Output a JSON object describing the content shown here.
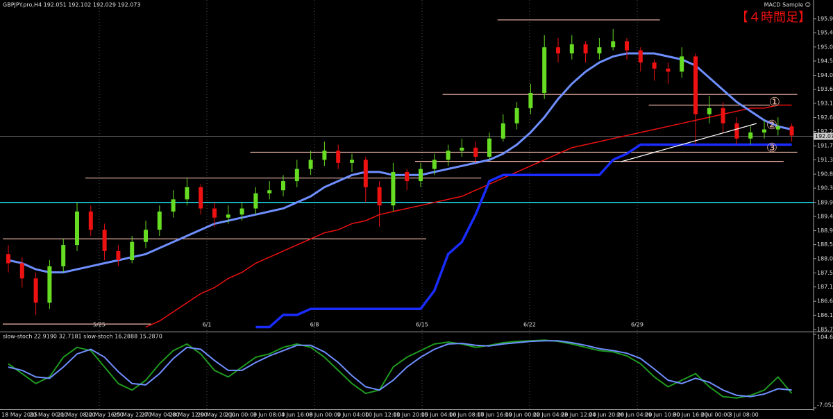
{
  "chart_data": {
    "type": "candlestick",
    "header": "GBPJPY.pro,H4  192.051 192.102 192.029 192.073",
    "indicator_name": "MACD Sample ☺",
    "timeframe_label": "【４時間足】",
    "markers": [
      "①",
      "②",
      "③"
    ],
    "open": [
      188.2,
      187.9,
      187.4,
      186.6,
      187.8,
      188.5,
      189.6,
      189.0,
      188.3,
      188.0,
      188.6,
      189.0,
      189.6,
      190.0,
      190.4,
      189.7,
      189.4,
      189.5,
      189.7,
      190.2,
      190.3,
      190.6,
      191.0,
      191.3,
      191.6,
      191.2,
      191.3,
      190.4,
      189.8,
      190.9,
      190.6,
      191.0,
      191.3,
      191.6,
      191.7,
      191.4,
      192.0,
      192.5,
      193.0,
      193.5,
      195.0,
      194.8,
      195.1,
      194.8,
      195.0,
      195.2,
      194.9,
      194.5,
      194.3,
      194.2,
      194.7,
      192.8,
      193.0,
      192.5,
      192.0,
      192.2,
      192.3,
      192.4
    ],
    "high": [
      188.5,
      188.1,
      187.6,
      188.0,
      188.7,
      189.9,
      189.8,
      189.2,
      188.5,
      188.8,
      189.3,
      189.8,
      190.3,
      190.7,
      190.5,
      189.9,
      189.8,
      189.9,
      190.4,
      190.6,
      190.8,
      191.3,
      191.6,
      191.9,
      191.8,
      191.5,
      191.4,
      190.6,
      191.2,
      191.0,
      191.2,
      191.5,
      191.8,
      192.0,
      191.9,
      192.2,
      192.8,
      193.2,
      193.8,
      195.4,
      195.3,
      195.4,
      195.2,
      195.3,
      195.6,
      195.3,
      195.0,
      194.6,
      194.5,
      195.0,
      194.8,
      193.4,
      193.2,
      192.7,
      192.4,
      192.6,
      192.7,
      192.5
    ],
    "low": [
      187.6,
      187.1,
      186.2,
      186.4,
      187.6,
      188.3,
      188.8,
      188.0,
      187.8,
      187.9,
      188.4,
      188.8,
      189.4,
      189.8,
      189.5,
      189.1,
      189.2,
      189.3,
      189.5,
      190.0,
      190.1,
      190.4,
      190.8,
      191.1,
      191.0,
      190.9,
      189.9,
      189.1,
      189.6,
      190.3,
      190.4,
      190.8,
      191.1,
      191.4,
      191.2,
      191.3,
      191.9,
      192.3,
      192.8,
      193.3,
      194.5,
      194.6,
      194.5,
      194.6,
      194.9,
      194.6,
      194.2,
      193.9,
      193.8,
      194.0,
      191.8,
      192.5,
      192.2,
      191.8,
      191.8,
      192.0,
      192.1,
      191.9
    ],
    "close": [
      187.9,
      187.4,
      186.6,
      187.8,
      188.5,
      189.6,
      189.0,
      188.3,
      188.0,
      188.6,
      189.0,
      189.6,
      190.0,
      190.4,
      189.7,
      189.4,
      189.5,
      189.7,
      190.2,
      190.3,
      190.6,
      191.0,
      191.3,
      191.6,
      191.2,
      191.3,
      190.4,
      189.8,
      190.9,
      190.6,
      191.0,
      191.3,
      191.6,
      191.7,
      191.4,
      192.0,
      192.5,
      193.0,
      193.5,
      195.0,
      194.8,
      195.1,
      194.8,
      195.0,
      195.2,
      194.9,
      194.5,
      194.3,
      194.2,
      194.7,
      192.8,
      193.0,
      192.5,
      192.0,
      192.2,
      192.3,
      192.4,
      192.1
    ],
    "bull_color": "#66dd22",
    "bear_color": "#ee1111",
    "overlays": [
      {
        "color": "#ee1111",
        "width": 1.5,
        "values": [
          null,
          null,
          null,
          null,
          null,
          null,
          null,
          null,
          null,
          null,
          185.8,
          186.0,
          186.3,
          186.6,
          186.9,
          187.1,
          187.4,
          187.6,
          187.9,
          188.1,
          188.3,
          188.5,
          188.7,
          188.9,
          189.0,
          189.2,
          189.3,
          189.5,
          189.6,
          189.7,
          189.8,
          189.9,
          190.0,
          190.1,
          190.3,
          190.5,
          190.7,
          190.9,
          191.1,
          191.3,
          191.5,
          191.7,
          191.8,
          191.9,
          192.0,
          192.1,
          192.2,
          192.3,
          192.4,
          192.5,
          192.6,
          192.7,
          192.8,
          192.9,
          193.0,
          193.0,
          193.1,
          193.1
        ]
      },
      {
        "color": "#1a2cff",
        "width": 3.5,
        "values": [
          null,
          null,
          null,
          null,
          null,
          null,
          null,
          null,
          null,
          null,
          null,
          null,
          null,
          null,
          null,
          null,
          null,
          null,
          185.8,
          185.8,
          186.2,
          186.2,
          186.4,
          186.4,
          186.4,
          186.4,
          186.4,
          186.4,
          186.4,
          186.4,
          186.4,
          187.0,
          188.2,
          188.6,
          189.5,
          190.6,
          190.8,
          190.8,
          190.8,
          190.8,
          190.8,
          190.8,
          190.8,
          190.8,
          191.3,
          191.5,
          191.8,
          191.8,
          191.8,
          191.8,
          191.8,
          191.8,
          191.8,
          191.8,
          191.8,
          191.8,
          191.8,
          191.8
        ]
      },
      {
        "color": "#6f8fff",
        "width": 3,
        "values": [
          188.0,
          187.9,
          187.7,
          187.6,
          187.6,
          187.7,
          187.8,
          187.9,
          188.0,
          188.1,
          188.2,
          188.4,
          188.6,
          188.8,
          189.0,
          189.2,
          189.3,
          189.4,
          189.5,
          189.6,
          189.7,
          189.9,
          190.1,
          190.4,
          190.6,
          190.8,
          190.9,
          190.9,
          190.8,
          190.8,
          190.8,
          190.9,
          191.0,
          191.1,
          191.2,
          191.3,
          191.5,
          191.8,
          192.2,
          192.7,
          193.3,
          193.8,
          194.2,
          194.5,
          194.7,
          194.8,
          194.8,
          194.8,
          194.7,
          194.6,
          194.4,
          194.0,
          193.6,
          193.2,
          192.9,
          192.6,
          192.4,
          192.3
        ]
      }
    ],
    "levels": [
      188.7,
      185.9,
      190.7,
      191.55,
      191.25,
      193.45,
      193.1,
      195.9
    ],
    "level_color": "#f0b8a8",
    "cyan_level": 189.9,
    "current_price": {
      "value": 192.073,
      "label": "192.073"
    },
    "ylim": [
      185.72,
      195.94
    ],
    "yticks": [
      {
        "value": 195.94,
        "label": "195.940"
      },
      {
        "value": 195.48,
        "label": "195.480"
      },
      {
        "value": 195.01,
        "label": "195.010"
      },
      {
        "value": 194.55,
        "label": "194.550"
      },
      {
        "value": 194.08,
        "label": "194.080"
      },
      {
        "value": 193.62,
        "label": "193.620"
      },
      {
        "value": 193.16,
        "label": "193.160"
      },
      {
        "value": 192.69,
        "label": "192.690"
      },
      {
        "value": 192.23,
        "label": "192.230"
      },
      {
        "value": 191.76,
        "label": "191.760"
      },
      {
        "value": 191.3,
        "label": "191.300"
      },
      {
        "value": 190.83,
        "label": "190.830"
      },
      {
        "value": 190.37,
        "label": "190.370"
      },
      {
        "value": 189.9,
        "label": "189.900"
      },
      {
        "value": 189.44,
        "label": "189.440"
      },
      {
        "value": 188.97,
        "label": "188.970"
      },
      {
        "value": 188.51,
        "label": "188.510"
      },
      {
        "value": 188.05,
        "label": "188.050"
      },
      {
        "value": 187.58,
        "label": "187.580"
      },
      {
        "value": 187.12,
        "label": "187.120"
      },
      {
        "value": 186.65,
        "label": "186.650"
      },
      {
        "value": 186.19,
        "label": "186.190"
      },
      {
        "value": 185.72,
        "label": "185.720"
      }
    ],
    "period_labels": [
      "5/25",
      "6/1",
      "6/8",
      "6/15",
      "6/22",
      "6/29"
    ],
    "time_labels": [
      "18 May 2015",
      "20 May 00:00",
      "21 May 08:00",
      "22 May 16:00",
      "25 May 22:00",
      "27 May 04:00",
      "28 May 12:00",
      "29 May 20:00",
      "2 Jun 00:00",
      "3 Jun 08:00",
      "4 Jun 16:00",
      "8 Jun 00:00",
      "9 Jun 04:00",
      "10 Jun 12:00",
      "11 Jun 20:00",
      "15 Jun 04:00",
      "16 Jun 08:00",
      "17 Jun 16:00",
      "19 Jun 00:00",
      "22 Jun 04:00",
      "23 Jun 12:00",
      "24 Jun 20:00",
      "26 Jun 04:00",
      "29 Jun 10:00",
      "30 Jun 16:00",
      "2 Jul 00:00",
      "3 Jul 08:00"
    ],
    "stoch": {
      "title": "slow-stoch 22.9190 32.7181 slow-stoch 16.2888 15.2870",
      "ylim": [
        -7.0521,
        104.6951
      ],
      "yticks": [
        104.6951,
        -7.0521
      ],
      "series": [
        {
          "color": "#1f9a1f",
          "values": [
            60,
            45,
            30,
            40,
            70,
            85,
            80,
            55,
            30,
            20,
            35,
            60,
            80,
            90,
            75,
            50,
            40,
            55,
            70,
            75,
            85,
            90,
            85,
            70,
            50,
            30,
            15,
            20,
            55,
            70,
            80,
            90,
            93,
            90,
            85,
            88,
            92,
            94,
            95,
            96,
            94,
            90,
            85,
            80,
            78,
            72,
            60,
            40,
            25,
            35,
            45,
            25,
            10,
            8,
            12,
            20,
            40,
            15
          ]
        },
        {
          "color": "#6f8fff",
          "values": [
            55,
            50,
            40,
            38,
            55,
            75,
            82,
            70,
            48,
            30,
            28,
            45,
            68,
            85,
            82,
            65,
            50,
            50,
            62,
            72,
            80,
            88,
            88,
            78,
            62,
            42,
            25,
            20,
            35,
            55,
            70,
            82,
            90,
            91,
            88,
            87,
            90,
            92,
            94,
            95,
            95,
            92,
            88,
            83,
            80,
            76,
            68,
            52,
            35,
            30,
            38,
            32,
            20,
            12,
            10,
            14,
            22,
            20
          ]
        }
      ]
    }
  }
}
